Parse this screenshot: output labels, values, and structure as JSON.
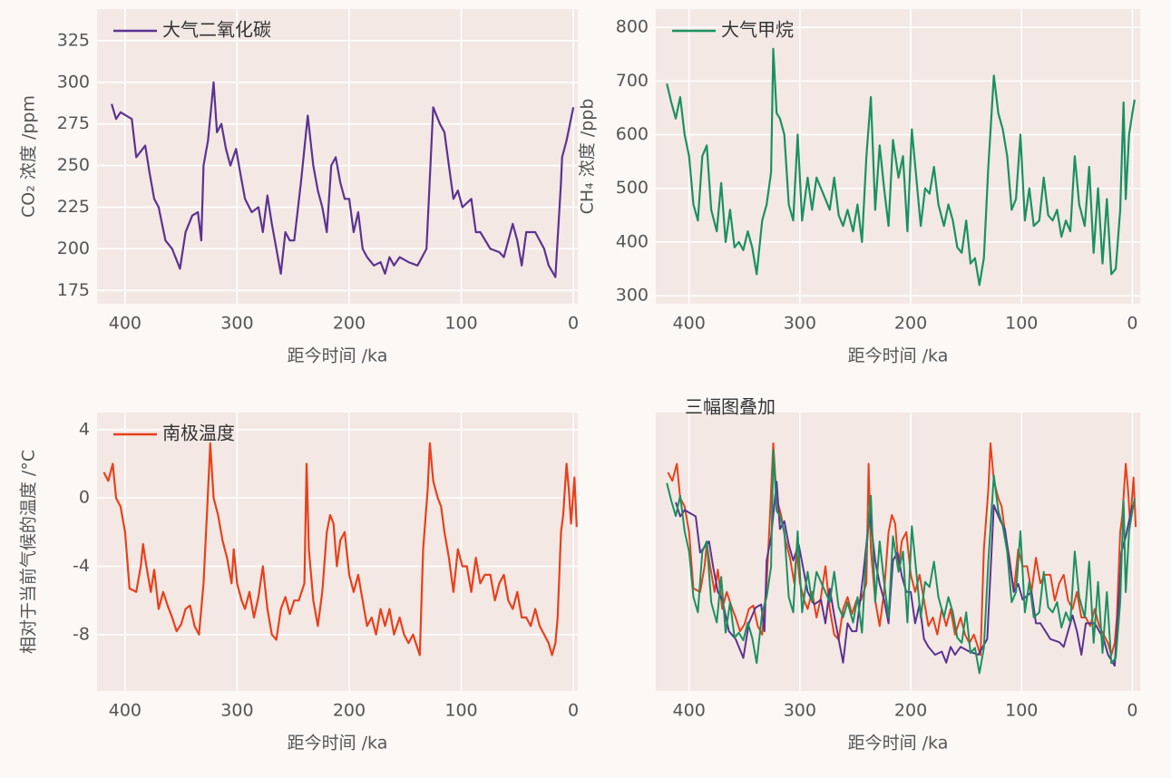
{
  "chart_data": [
    {
      "type": "line",
      "xlabel": "距今时间 /ka",
      "ylabel": "CO₂ 浓度 /ppm",
      "xlim": [
        425,
        -4
      ],
      "xticks": [
        400,
        300,
        200,
        100,
        0
      ],
      "ylim": [
        167,
        344
      ],
      "yticks": [
        175,
        200,
        225,
        250,
        275,
        300,
        325
      ],
      "grid": true,
      "series": [
        {
          "name": "大气二氧化碳",
          "color": "#5b3391",
          "x": [
            412,
            408,
            404,
            394,
            390,
            382,
            378,
            374,
            370,
            364,
            358,
            351,
            346,
            340,
            335,
            332,
            330,
            326,
            321,
            318,
            314,
            310,
            306,
            301,
            297,
            293,
            287,
            281,
            277,
            273,
            269,
            265,
            261,
            257,
            253,
            249,
            243,
            237,
            232,
            228,
            224,
            220,
            216,
            212,
            208,
            204,
            200,
            196,
            192,
            188,
            184,
            178,
            172,
            168,
            164,
            160,
            155,
            147,
            139,
            135,
            131,
            125,
            119,
            115,
            111,
            107,
            103,
            99,
            91,
            87,
            83,
            74,
            66,
            62,
            54,
            50,
            46,
            42,
            34,
            26,
            22,
            16,
            11,
            10,
            6,
            0
          ],
          "values": [
            287,
            278,
            282,
            278,
            255,
            262,
            245,
            230,
            225,
            205,
            200,
            188,
            210,
            220,
            222,
            205,
            250,
            265,
            300,
            270,
            275,
            260,
            250,
            260,
            245,
            230,
            222,
            225,
            210,
            232,
            215,
            200,
            185,
            210,
            205,
            205,
            240,
            280,
            250,
            235,
            225,
            210,
            250,
            255,
            240,
            230,
            230,
            210,
            222,
            200,
            195,
            190,
            192,
            185,
            195,
            190,
            195,
            192,
            190,
            195,
            200,
            285,
            275,
            270,
            250,
            230,
            235,
            225,
            230,
            210,
            210,
            200,
            198,
            195,
            215,
            205,
            190,
            210,
            210,
            200,
            190,
            183,
            240,
            255,
            265,
            285
          ]
        }
      ]
    },
    {
      "type": "line",
      "xlabel": "距今时间 /ka",
      "ylabel": "CH₄ 浓度 /ppb",
      "xlim": [
        430,
        -7
      ],
      "xticks": [
        400,
        300,
        200,
        100,
        0
      ],
      "ylim": [
        285,
        834
      ],
      "yticks": [
        300,
        400,
        500,
        600,
        700,
        800
      ],
      "grid": true,
      "series": [
        {
          "name": "大气甲烷",
          "color": "#1a9160",
          "x": [
            420,
            416,
            412,
            408,
            404,
            400,
            396,
            392,
            388,
            384,
            380,
            375,
            371,
            367,
            363,
            359,
            355,
            351,
            347,
            343,
            339,
            334,
            330,
            326,
            324,
            321,
            318,
            314,
            310,
            306,
            302,
            298,
            293,
            289,
            285,
            277,
            273,
            269,
            265,
            261,
            257,
            252,
            248,
            244,
            240,
            236,
            232,
            228,
            224,
            220,
            216,
            211,
            207,
            203,
            199,
            195,
            191,
            187,
            183,
            179,
            175,
            170,
            166,
            162,
            158,
            154,
            150,
            146,
            142,
            138,
            134,
            130,
            125,
            121,
            117,
            113,
            109,
            105,
            101,
            97,
            93,
            89,
            84,
            80,
            76,
            72,
            68,
            64,
            60,
            56,
            52,
            48,
            43,
            39,
            35,
            31,
            27,
            23,
            19,
            15,
            11,
            8,
            6,
            3,
            0,
            -2
          ],
          "values": [
            695,
            660,
            630,
            670,
            600,
            560,
            470,
            440,
            560,
            580,
            460,
            420,
            510,
            400,
            460,
            390,
            400,
            385,
            420,
            390,
            340,
            440,
            470,
            530,
            760,
            640,
            630,
            600,
            470,
            440,
            600,
            440,
            520,
            460,
            520,
            480,
            460,
            520,
            450,
            430,
            460,
            420,
            470,
            400,
            560,
            670,
            460,
            580,
            500,
            430,
            590,
            520,
            560,
            420,
            610,
            520,
            430,
            500,
            490,
            540,
            470,
            430,
            470,
            440,
            390,
            380,
            440,
            360,
            370,
            320,
            370,
            540,
            710,
            640,
            610,
            560,
            460,
            480,
            600,
            440,
            500,
            430,
            440,
            520,
            450,
            440,
            460,
            410,
            440,
            420,
            560,
            470,
            430,
            540,
            380,
            500,
            360,
            480,
            340,
            350,
            460,
            660,
            480,
            600,
            640,
            665
          ]
        }
      ]
    },
    {
      "type": "line",
      "xlabel": "距今时间 /ka",
      "ylabel": "相对于当前气候的温度 /°C",
      "xlim": [
        425,
        -4
      ],
      "xticks": [
        400,
        300,
        200,
        100,
        0
      ],
      "ylim": [
        -11.3,
        5
      ],
      "yticks": [
        -8,
        -4,
        0,
        4
      ],
      "grid": true,
      "series": [
        {
          "name": "南极温度",
          "color": "#e8401c",
          "x": [
            419,
            415,
            411,
            408,
            404,
            400,
            396,
            390,
            386,
            384,
            381,
            377,
            374,
            370,
            366,
            362,
            358,
            354,
            350,
            346,
            342,
            338,
            334,
            330,
            327,
            324,
            321,
            317,
            313,
            309,
            305,
            303,
            300,
            296,
            293,
            289,
            285,
            281,
            277,
            273,
            269,
            265,
            261,
            257,
            253,
            249,
            245,
            240,
            238,
            236,
            232,
            228,
            224,
            220,
            217,
            214,
            211,
            208,
            204,
            200,
            196,
            192,
            188,
            184,
            180,
            176,
            172,
            168,
            164,
            160,
            155,
            151,
            147,
            143,
            139,
            137,
            134,
            130,
            128,
            125,
            121,
            118,
            115,
            111,
            107,
            103,
            99,
            95,
            91,
            87,
            83,
            79,
            74,
            70,
            66,
            62,
            58,
            54,
            50,
            46,
            42,
            38,
            34,
            30,
            26,
            22,
            19,
            16,
            14,
            11,
            9,
            6,
            4,
            2,
            -1,
            -3
          ],
          "values": [
            1.5,
            1,
            2,
            0,
            -0.5,
            -2,
            -5.3,
            -5.5,
            -4,
            -2.7,
            -4,
            -5.5,
            -4.2,
            -6.5,
            -5.5,
            -6.3,
            -7,
            -7.8,
            -7.4,
            -6.5,
            -6.3,
            -7.5,
            -8,
            -5,
            -1,
            3.2,
            0,
            -1,
            -2.5,
            -3.5,
            -5,
            -3,
            -5,
            -6,
            -6.5,
            -5.5,
            -7,
            -5.8,
            -4,
            -6.5,
            -8,
            -8.3,
            -6.5,
            -5.8,
            -6.8,
            -6,
            -6,
            -5,
            2,
            -3,
            -6,
            -7.5,
            -5.5,
            -2,
            -1,
            -1.5,
            -4,
            -2.5,
            -2,
            -4.5,
            -5.5,
            -4.5,
            -6,
            -7.5,
            -7,
            -8,
            -6.5,
            -7.5,
            -6.5,
            -8,
            -7,
            -8,
            -8.5,
            -8,
            -8.8,
            -9.2,
            -3,
            0.5,
            3.2,
            1,
            0,
            -0.5,
            -2,
            -3.5,
            -5.5,
            -3,
            -4,
            -4,
            -5.5,
            -3.5,
            -5,
            -4.5,
            -4.5,
            -6,
            -5,
            -4.5,
            -6,
            -6.5,
            -5.5,
            -7,
            -7,
            -7.5,
            -6.5,
            -7.5,
            -8,
            -8.5,
            -9.2,
            -8.5,
            -7,
            -2,
            -1,
            2,
            0.5,
            -1.5,
            1.2,
            -1.7
          ]
        }
      ]
    },
    {
      "type": "overlay",
      "title": "三幅图叠加",
      "xlabel": "距今时间 /ka",
      "xlim": [
        430,
        -7
      ],
      "xticks": [
        400,
        300,
        200,
        100,
        0
      ],
      "grid": true
    }
  ]
}
